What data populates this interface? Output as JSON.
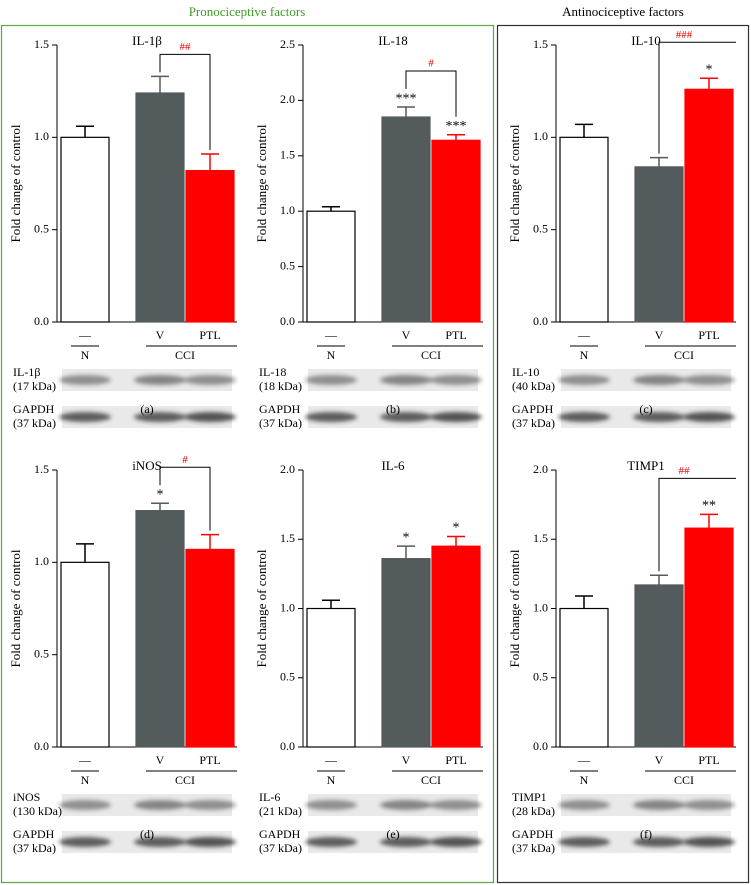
{
  "headers": {
    "left": "Pronociceptive factors",
    "right": "Antinociceptive factors"
  },
  "chart_data": [
    {
      "type": "bar",
      "title": "IL-1β",
      "ylabel": "Fold change of control",
      "categories": [
        "—",
        "V",
        "PTL"
      ],
      "groups": [
        "N",
        "CCI"
      ],
      "values": [
        1.0,
        1.24,
        0.82
      ],
      "errors": [
        0.06,
        0.09,
        0.09
      ],
      "colors": [
        "#ffffff",
        "#535b5c",
        "#ff0000"
      ],
      "stars": [
        null,
        null,
        null
      ],
      "bracket_label": "##",
      "ylim": [
        0,
        1.5
      ],
      "yticks": [
        {
          "value": 0,
          "label": "0.0"
        },
        0.5,
        {
          "value": 1,
          "label": "1.0"
        },
        1.5
      ],
      "blot_rows": [
        {
          "name": "IL-1β",
          "size": "(17 kDa)"
        },
        {
          "name": "GAPDH",
          "size": "(37 kDa)"
        }
      ],
      "panel": "(a)"
    },
    {
      "type": "bar",
      "title": "IL-18",
      "ylabel": "Fold change of control",
      "categories": [
        "—",
        "V",
        "PTL"
      ],
      "groups": [
        "N",
        "CCI"
      ],
      "values": [
        1.0,
        1.85,
        1.64
      ],
      "errors": [
        0.04,
        0.09,
        0.05
      ],
      "colors": [
        "#ffffff",
        "#535b5c",
        "#ff0000"
      ],
      "stars": [
        null,
        "***",
        "***"
      ],
      "bracket_label": "#",
      "ylim": [
        0,
        2.5
      ],
      "yticks": [
        {
          "value": 0,
          "label": "0.0"
        },
        0.5,
        {
          "value": 1,
          "label": "1.0"
        },
        1.5,
        {
          "value": 2,
          "label": "2.0"
        },
        2.5
      ],
      "blot_rows": [
        {
          "name": "IL-18",
          "size": "(18 kDa)"
        },
        {
          "name": "GAPDH",
          "size": "(37 kDa)"
        }
      ],
      "panel": "(b)"
    },
    {
      "type": "bar",
      "title": "IL-10",
      "ylabel": "Fold change of control",
      "categories": [
        "—",
        "V",
        "PTL"
      ],
      "groups": [
        "N",
        "CCI"
      ],
      "values": [
        1.0,
        0.84,
        1.26
      ],
      "errors": [
        0.07,
        0.05,
        0.06
      ],
      "colors": [
        "#ffffff",
        "#535b5c",
        "#ff0000"
      ],
      "stars": [
        null,
        null,
        "*"
      ],
      "bracket_label": "###",
      "ylim": [
        0,
        1.5
      ],
      "yticks": [
        {
          "value": 0,
          "label": "0.0"
        },
        0.5,
        {
          "value": 1,
          "label": "1.0"
        },
        1.5
      ],
      "blot_rows": [
        {
          "name": "IL-10",
          "size": "(40 kDa)"
        },
        {
          "name": "GAPDH",
          "size": "(37 kDa)"
        }
      ],
      "panel": "(c)"
    },
    {
      "type": "bar",
      "title": "iNOS",
      "ylabel": "Fold change of control",
      "categories": [
        "—",
        "V",
        "PTL"
      ],
      "groups": [
        "N",
        "CCI"
      ],
      "values": [
        1.0,
        1.28,
        1.07
      ],
      "errors": [
        0.1,
        0.04,
        0.08
      ],
      "colors": [
        "#ffffff",
        "#535b5c",
        "#ff0000"
      ],
      "stars": [
        null,
        "*",
        null
      ],
      "bracket_label": "#",
      "ylim": [
        0,
        1.5
      ],
      "yticks": [
        {
          "value": 0,
          "label": "0.0"
        },
        0.5,
        {
          "value": 1,
          "label": "1.0"
        },
        1.5
      ],
      "blot_rows": [
        {
          "name": "iNOS",
          "size": "(130 kDa)"
        },
        {
          "name": "GAPDH",
          "size": "(37 kDa)"
        }
      ],
      "panel": "(d)"
    },
    {
      "type": "bar",
      "title": "IL-6",
      "ylabel": "Fold change of control",
      "categories": [
        "—",
        "V",
        "PTL"
      ],
      "groups": [
        "N",
        "CCI"
      ],
      "values": [
        1.0,
        1.36,
        1.45
      ],
      "errors": [
        0.06,
        0.09,
        0.07
      ],
      "colors": [
        "#ffffff",
        "#535b5c",
        "#ff0000"
      ],
      "stars": [
        null,
        "*",
        "*"
      ],
      "ylim": [
        0,
        2.0
      ],
      "yticks": [
        {
          "value": 0,
          "label": "0.0"
        },
        0.5,
        {
          "value": 1,
          "label": "1.0"
        },
        1.5,
        {
          "value": 2,
          "label": "2.0"
        }
      ],
      "blot_rows": [
        {
          "name": "IL-6",
          "size": "(21 kDa)"
        },
        {
          "name": "GAPDH",
          "size": "(37 kDa)"
        }
      ],
      "panel": "(e)"
    },
    {
      "type": "bar",
      "title": "TIMP1",
      "ylabel": "Fold change of control",
      "categories": [
        "—",
        "V",
        "PTL"
      ],
      "groups": [
        "N",
        "CCI"
      ],
      "values": [
        1.0,
        1.17,
        1.58
      ],
      "errors": [
        0.09,
        0.07,
        0.1
      ],
      "colors": [
        "#ffffff",
        "#535b5c",
        "#ff0000"
      ],
      "stars": [
        null,
        null,
        "**"
      ],
      "bracket_label": "##",
      "ylim": [
        0,
        2.0
      ],
      "yticks": [
        {
          "value": 0,
          "label": "0.0"
        },
        0.5,
        {
          "value": 1,
          "label": "1.0"
        },
        1.5,
        {
          "value": 2,
          "label": "2.0"
        }
      ],
      "blot_rows": [
        {
          "name": "TIMP1",
          "size": "(28 kDa)"
        },
        {
          "name": "GAPDH",
          "size": "(37 kDa)"
        }
      ],
      "panel": "(f)"
    }
  ]
}
